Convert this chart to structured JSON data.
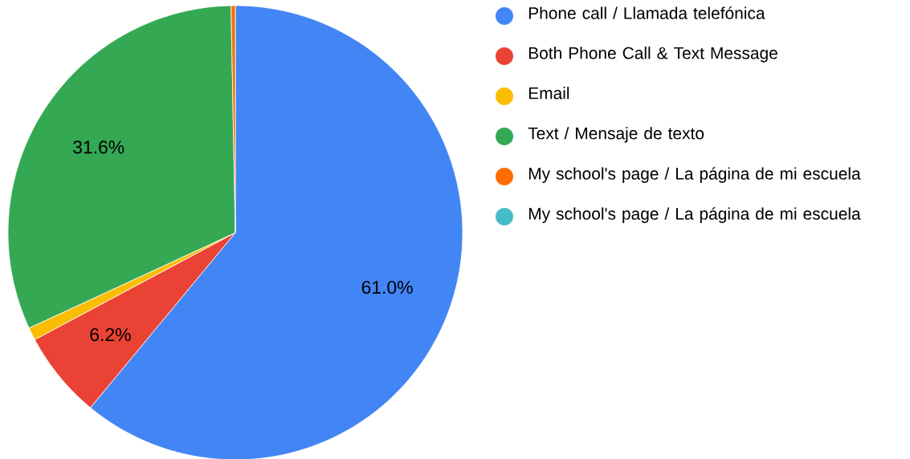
{
  "chart_data": {
    "type": "pie",
    "categories": [
      "Phone call / Llamada telefónica",
      "Both Phone Call & Text Message",
      "Email",
      "Text / Mensaje de texto",
      "My school's page / La página de mi escuela",
      "My school's page / La página de mi escuela"
    ],
    "values": [
      61.0,
      6.2,
      0.9,
      31.6,
      0.3,
      0.0
    ],
    "colors": [
      "#4285f4",
      "#ea4335",
      "#fbbc04",
      "#34a853",
      "#ff6d01",
      "#46bdc6"
    ],
    "value_labels": [
      "61.0%",
      "6.2%",
      null,
      "31.6%",
      null,
      null
    ],
    "legend": "right"
  }
}
